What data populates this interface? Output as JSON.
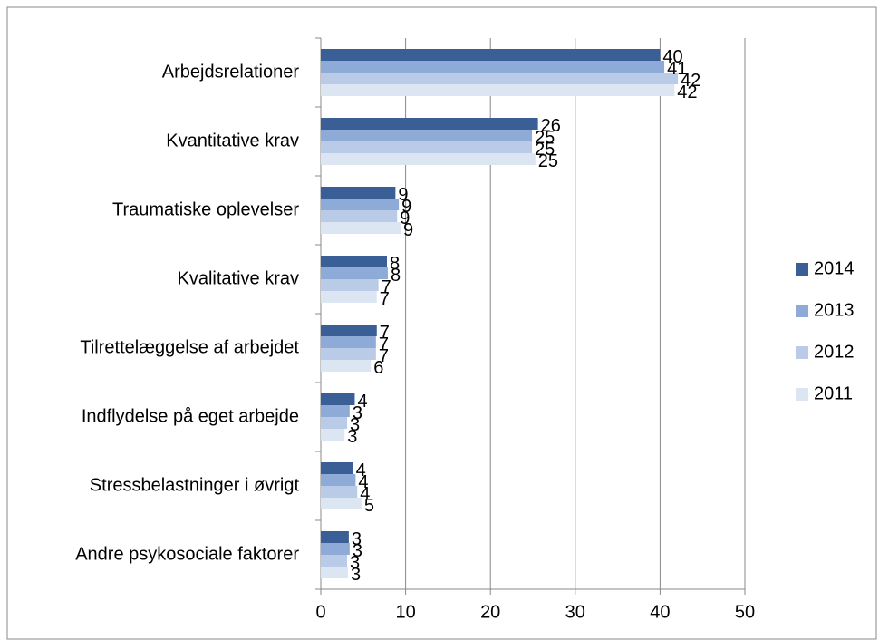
{
  "chart_data": {
    "type": "bar",
    "orientation": "horizontal",
    "categories": [
      "Arbejdsrelationer",
      "Kvantitative krav",
      "Traumatiske oplevelser",
      "Kvalitative krav",
      "Tilrettelæggelse af arbejdet",
      "Indflydelse på eget arbejde",
      "Stressbelastninger i øvrigt",
      "Andre psykosociale faktorer"
    ],
    "series": [
      {
        "name": "2014",
        "color": "#3a5f96",
        "values": [
          40.0,
          25.6,
          8.8,
          7.8,
          6.6,
          4.0,
          3.8,
          3.3
        ],
        "value_labels": [
          "40",
          "26",
          "9",
          "8",
          "7",
          "4",
          "4",
          "3"
        ]
      },
      {
        "name": "2013",
        "color": "#8eaad6",
        "values": [
          40.5,
          24.9,
          9.2,
          7.9,
          6.5,
          3.4,
          4.1,
          3.4
        ],
        "value_labels": [
          "41",
          "25",
          "9",
          "8",
          "7",
          "3",
          "4",
          "3"
        ]
      },
      {
        "name": "2012",
        "color": "#b9cbe6",
        "values": [
          42.1,
          24.9,
          9.0,
          6.8,
          6.5,
          3.1,
          4.3,
          3.1
        ],
        "value_labels": [
          "42",
          "25",
          "9",
          "7",
          "7",
          "3",
          "4",
          "3"
        ]
      },
      {
        "name": "2011",
        "color": "#dce6f2",
        "values": [
          41.7,
          25.3,
          9.4,
          6.6,
          5.9,
          2.8,
          4.8,
          3.2
        ],
        "value_labels": [
          "42",
          "25",
          "9",
          "7",
          "6",
          "3",
          "5",
          "3"
        ]
      }
    ],
    "xlim": [
      0,
      50
    ],
    "xticks": [
      0,
      10,
      20,
      30,
      40,
      50
    ],
    "grid": true,
    "legend": "right"
  }
}
